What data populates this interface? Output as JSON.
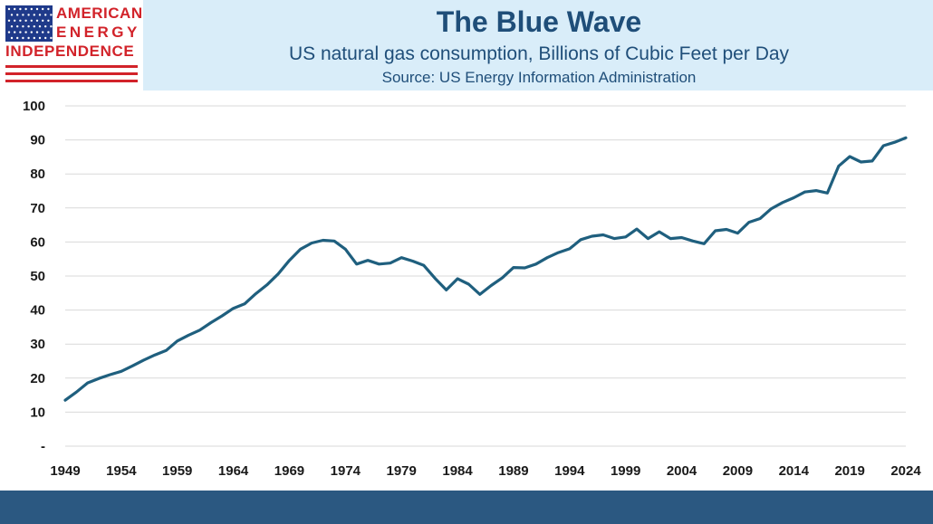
{
  "logo": {
    "line1": "AMERICAN",
    "line2": "ENERGY",
    "line3": "INDEPENDENCE",
    "flag_name": "us-flag",
    "red": "#d2232a",
    "blue": "#1f3a8a"
  },
  "colors": {
    "header_bg": "#d9edf9",
    "title": "#1f4e79",
    "line": "#1f5f7e",
    "grid": "#d9d9d9",
    "footer": "#2b5881"
  },
  "chart_data": {
    "type": "line",
    "title": "The Blue Wave",
    "subtitle": "US natural gas consumption, Billions of Cubic Feet per Day",
    "source": "Source: US Energy Information Administration",
    "xlabel": "",
    "ylabel": "",
    "xlim": [
      1949,
      2024
    ],
    "ylim": [
      0,
      100
    ],
    "grid": true,
    "x_ticks": [
      1949,
      1954,
      1959,
      1964,
      1969,
      1974,
      1979,
      1984,
      1989,
      1994,
      1999,
      2004,
      2009,
      2014,
      2019,
      2024
    ],
    "x_tick_labels": [
      "1949",
      "1954",
      "1959",
      "1964",
      "1969",
      "1974",
      "1979",
      "1984",
      "1989",
      "1994",
      "1999",
      "2004",
      "2009",
      "2014",
      "2019",
      "2024"
    ],
    "y_ticks": [
      0,
      10,
      20,
      30,
      40,
      50,
      60,
      70,
      80,
      90,
      100
    ],
    "y_tick_labels": [
      "-",
      "10",
      "20",
      "30",
      "40",
      "50",
      "60",
      "70",
      "80",
      "90",
      "100"
    ],
    "series": [
      {
        "name": "US natural gas consumption",
        "x": [
          1949,
          1950,
          1951,
          1952,
          1953,
          1954,
          1955,
          1956,
          1957,
          1958,
          1959,
          1960,
          1961,
          1962,
          1963,
          1964,
          1965,
          1966,
          1967,
          1968,
          1969,
          1970,
          1971,
          1972,
          1973,
          1974,
          1975,
          1976,
          1977,
          1978,
          1979,
          1980,
          1981,
          1982,
          1983,
          1984,
          1985,
          1986,
          1987,
          1988,
          1989,
          1990,
          1991,
          1992,
          1993,
          1994,
          1995,
          1996,
          1997,
          1998,
          1999,
          2000,
          2001,
          2002,
          2003,
          2004,
          2005,
          2006,
          2007,
          2008,
          2009,
          2010,
          2011,
          2012,
          2013,
          2014,
          2015,
          2016,
          2017,
          2018,
          2019,
          2020,
          2021,
          2022,
          2023,
          2024
        ],
        "values": [
          13.5,
          15.9,
          18.6,
          19.9,
          21.0,
          22.0,
          23.6,
          25.3,
          26.8,
          28.1,
          30.9,
          32.6,
          34.1,
          36.3,
          38.3,
          40.5,
          41.8,
          44.8,
          47.4,
          50.6,
          54.6,
          57.9,
          59.7,
          60.5,
          60.3,
          57.9,
          53.5,
          54.6,
          53.5,
          53.8,
          55.4,
          54.4,
          53.1,
          49.3,
          45.9,
          49.2,
          47.6,
          44.6,
          47.2,
          49.5,
          52.5,
          52.4,
          53.5,
          55.4,
          56.9,
          58.0,
          60.7,
          61.7,
          62.1,
          61.0,
          61.5,
          63.8,
          61.0,
          63.0,
          61.0,
          61.3,
          60.3,
          59.5,
          63.3,
          63.7,
          62.6,
          65.8,
          66.9,
          69.8,
          71.6,
          73.0,
          74.7,
          75.1,
          74.4,
          82.3,
          85.1,
          83.5,
          83.8,
          88.3,
          89.3,
          90.6
        ]
      }
    ]
  }
}
